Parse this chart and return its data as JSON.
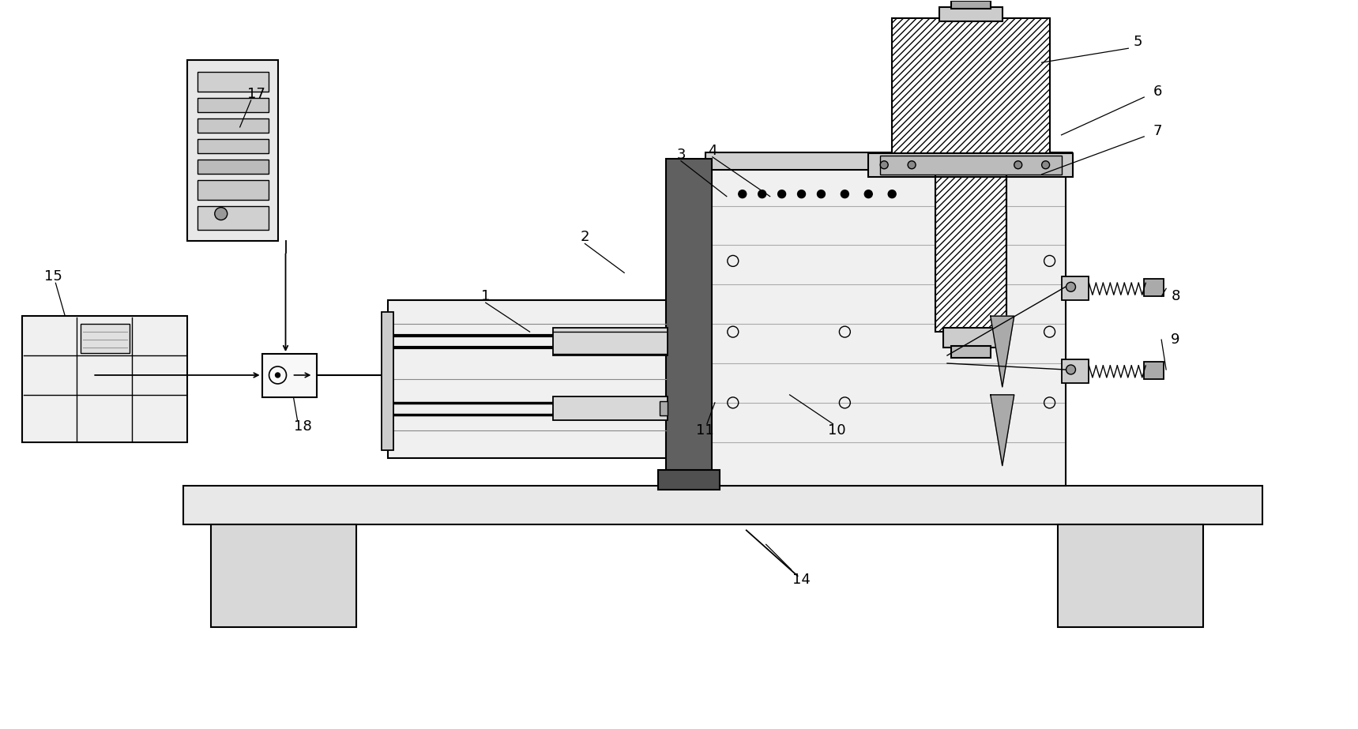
{
  "bg_color": "#ffffff",
  "line_color": "#000000",
  "fig_width": 17.19,
  "fig_height": 9.23,
  "dpi": 100
}
